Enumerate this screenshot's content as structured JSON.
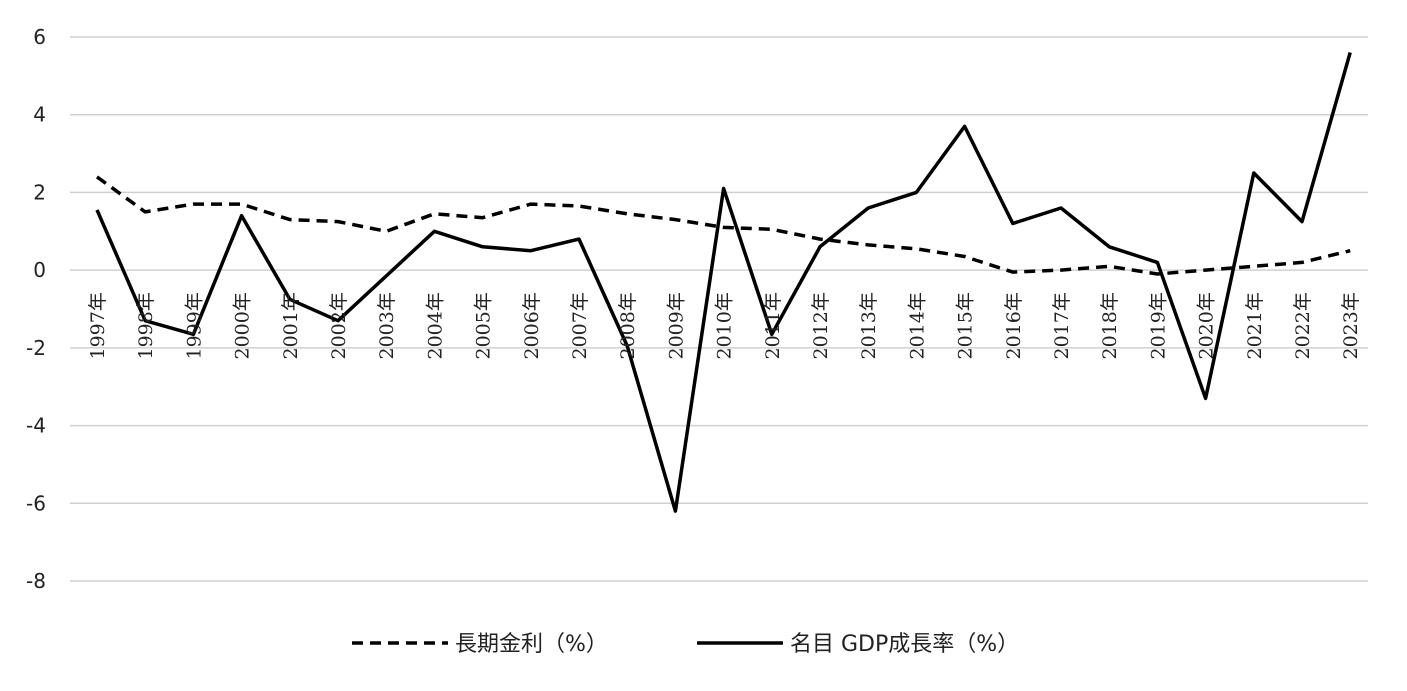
{
  "chart_data": {
    "type": "line",
    "categories": [
      "1997年",
      "1998年",
      "1999年",
      "2000年",
      "2001年",
      "2002年",
      "2003年",
      "2004年",
      "2005年",
      "2006年",
      "2007年",
      "2008年",
      "2009年",
      "2010年",
      "2011年",
      "2012年",
      "2013年",
      "2014年",
      "2015年",
      "2016年",
      "2017年",
      "2018年",
      "2019年",
      "2020年",
      "2021年",
      "2022年",
      "2023年"
    ],
    "series": [
      {
        "name": "長期金利（%）",
        "style": "dashed",
        "color": "#000000",
        "values": [
          2.4,
          1.5,
          1.7,
          1.7,
          1.3,
          1.25,
          1.0,
          1.45,
          1.35,
          1.7,
          1.65,
          1.45,
          1.3,
          1.1,
          1.05,
          0.8,
          0.65,
          0.55,
          0.35,
          -0.05,
          0.0,
          0.1,
          -0.1,
          0.0,
          0.1,
          0.2,
          0.5
        ]
      },
      {
        "name": "名目 GDP成長率（%）",
        "style": "solid",
        "color": "#000000",
        "values": [
          1.55,
          -1.3,
          -1.65,
          1.4,
          -0.75,
          -1.3,
          -0.15,
          1.0,
          0.6,
          0.5,
          0.8,
          -1.95,
          -6.2,
          2.1,
          -1.65,
          0.6,
          1.6,
          2.0,
          3.7,
          1.2,
          1.6,
          0.6,
          0.2,
          -3.3,
          2.5,
          1.25,
          5.6
        ]
      }
    ],
    "y_ticks": [
      "6",
      "4",
      "2",
      "0",
      "-2",
      "-4",
      "-6",
      "-8"
    ],
    "ylim": [
      -8,
      6
    ],
    "grid": true,
    "legend_position": "bottom"
  }
}
